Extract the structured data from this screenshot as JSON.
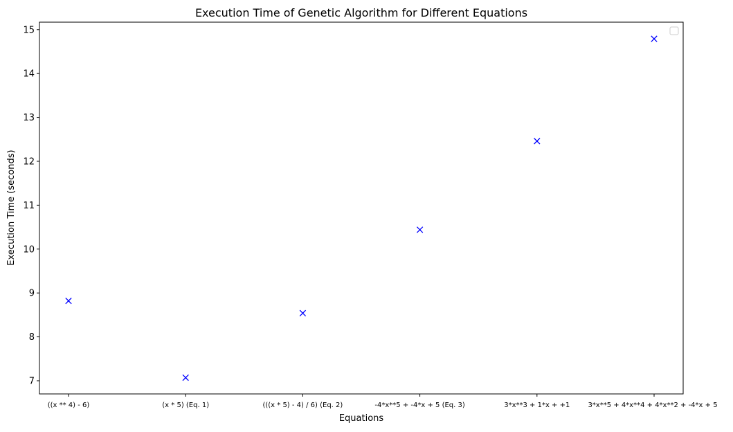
{
  "chart_data": {
    "type": "scatter",
    "title": "Execution Time of Genetic Algorithm for Different Equations",
    "xlabel": "Equations",
    "ylabel": "Execution Time (seconds)",
    "categories": [
      "((x ** 4) - 6)",
      "(x * 5) (Eq. 1)",
      "(((x * 5) - 4) / 6) (Eq. 2)",
      "-4*x**5 + -4*x + 5 (Eq. 3)",
      "3*x**3 + 1*x + +1",
      "3*x**5 + 4*x**4 + 4*x**2 + -4*x + 5"
    ],
    "values": [
      8.82,
      7.07,
      8.54,
      10.44,
      12.46,
      14.79
    ],
    "ylim": [
      6.7,
      15.17
    ],
    "yticks": [
      7,
      8,
      9,
      10,
      11,
      12,
      13,
      14,
      15
    ],
    "marker": "x",
    "marker_color": "#0000ff",
    "grid": false,
    "legend": {
      "placement": "top-right",
      "entries": []
    }
  }
}
